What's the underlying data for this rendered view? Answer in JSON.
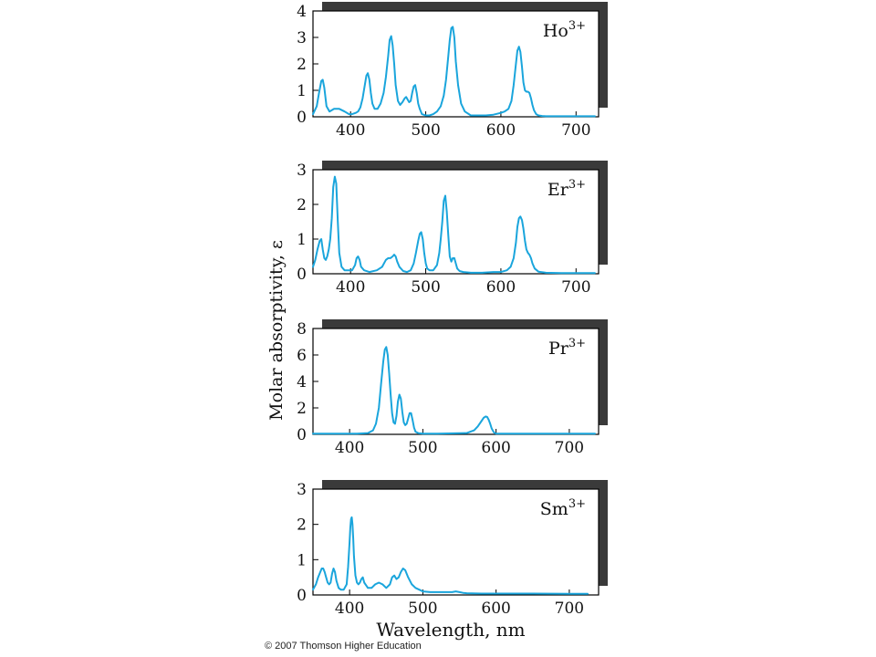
{
  "figure": {
    "ylabel": "Molar absorptivity, ε",
    "xlabel": "Wavelength, nm",
    "copyright": "© 2007 Thomson Higher Education",
    "colors": {
      "line": "#1aa5dc",
      "axis": "#000000",
      "shadow": "#3a3a3a"
    }
  },
  "chart_data": [
    {
      "type": "line",
      "ion_label": {
        "element": "Ho",
        "charge": "3+"
      },
      "xlim": [
        350,
        730
      ],
      "ylim": [
        0,
        4
      ],
      "y_ticks": [
        "0",
        "1",
        "2",
        "3",
        "4"
      ],
      "x_ticks": [
        "400",
        "500",
        "600",
        "700"
      ],
      "series": [
        {
          "x": [
            350,
            355,
            358,
            361,
            363,
            365,
            368,
            372,
            378,
            385,
            392,
            398,
            402,
            407,
            410,
            413,
            416,
            419,
            421,
            423,
            425,
            427,
            429,
            432,
            436,
            440,
            444,
            447,
            450,
            452,
            454,
            456,
            458,
            460,
            463,
            466,
            469,
            472,
            474,
            476,
            478,
            480,
            482,
            484,
            486,
            488,
            490,
            492,
            495,
            500,
            505,
            510,
            515,
            520,
            524,
            527,
            530,
            532,
            534,
            536,
            538,
            540,
            543,
            547,
            552,
            560,
            570,
            580,
            590,
            600,
            605,
            610,
            614,
            617,
            620,
            622,
            624,
            626,
            628,
            630,
            632,
            634,
            636,
            638,
            640,
            642,
            644,
            647,
            650,
            655,
            660,
            670,
            680,
            690,
            700,
            710,
            720,
            725
          ],
          "y": [
            0.1,
            0.4,
            0.9,
            1.35,
            1.4,
            1.1,
            0.4,
            0.2,
            0.3,
            0.3,
            0.2,
            0.1,
            0.1,
            0.15,
            0.2,
            0.35,
            0.7,
            1.2,
            1.55,
            1.65,
            1.4,
            0.9,
            0.5,
            0.3,
            0.3,
            0.5,
            0.9,
            1.5,
            2.3,
            2.9,
            3.05,
            2.7,
            2.0,
            1.2,
            0.6,
            0.45,
            0.55,
            0.7,
            0.75,
            0.65,
            0.55,
            0.6,
            0.9,
            1.15,
            1.2,
            0.9,
            0.5,
            0.3,
            0.1,
            0.05,
            0.05,
            0.1,
            0.2,
            0.4,
            0.8,
            1.4,
            2.3,
            2.9,
            3.35,
            3.4,
            3.0,
            2.1,
            1.2,
            0.5,
            0.2,
            0.05,
            0.05,
            0.05,
            0.08,
            0.15,
            0.2,
            0.3,
            0.6,
            1.2,
            2.0,
            2.5,
            2.65,
            2.45,
            1.9,
            1.3,
            1.0,
            0.95,
            0.95,
            0.9,
            0.7,
            0.45,
            0.25,
            0.1,
            0.05,
            0.03,
            0.02,
            0.02,
            0.02,
            0.02,
            0.02,
            0.02,
            0.02,
            0.02
          ]
        }
      ]
    },
    {
      "type": "line",
      "ion_label": {
        "element": "Er",
        "charge": "3+"
      },
      "xlim": [
        350,
        730
      ],
      "ylim": [
        0,
        3
      ],
      "y_ticks": [
        "0",
        "1",
        "2",
        "3"
      ],
      "x_ticks": [
        "400",
        "500",
        "600",
        "700"
      ],
      "series": [
        {
          "x": [
            350,
            353,
            356,
            359,
            361,
            363,
            365,
            367,
            369,
            371,
            373,
            375,
            377,
            379,
            381,
            383,
            385,
            388,
            392,
            397,
            402,
            406,
            408,
            410,
            412,
            414,
            418,
            425,
            435,
            442,
            447,
            450,
            453,
            456,
            458,
            460,
            462,
            465,
            470,
            475,
            480,
            484,
            487,
            490,
            492,
            494,
            496,
            498,
            500,
            502,
            505,
            510,
            515,
            518,
            520,
            522,
            524,
            526,
            528,
            530,
            532,
            534,
            536,
            538,
            540,
            542,
            545,
            550,
            560,
            575,
            590,
            600,
            608,
            613,
            617,
            620,
            622,
            624,
            626,
            628,
            630,
            632,
            634,
            636,
            638,
            640,
            642,
            645,
            650,
            660,
            680,
            700,
            715,
            725
          ],
          "y": [
            0.2,
            0.4,
            0.7,
            0.95,
            1.0,
            0.7,
            0.45,
            0.4,
            0.5,
            0.7,
            1.0,
            1.6,
            2.5,
            2.8,
            2.6,
            1.5,
            0.6,
            0.2,
            0.1,
            0.1,
            0.1,
            0.25,
            0.45,
            0.5,
            0.4,
            0.2,
            0.1,
            0.05,
            0.1,
            0.2,
            0.4,
            0.45,
            0.45,
            0.5,
            0.55,
            0.5,
            0.35,
            0.2,
            0.08,
            0.05,
            0.1,
            0.3,
            0.6,
            0.95,
            1.15,
            1.2,
            1.0,
            0.6,
            0.3,
            0.15,
            0.1,
            0.1,
            0.25,
            0.6,
            1.0,
            1.5,
            2.1,
            2.25,
            1.8,
            1.1,
            0.5,
            0.35,
            0.45,
            0.45,
            0.3,
            0.15,
            0.08,
            0.05,
            0.03,
            0.03,
            0.05,
            0.05,
            0.1,
            0.2,
            0.45,
            0.9,
            1.35,
            1.6,
            1.65,
            1.55,
            1.3,
            0.95,
            0.7,
            0.6,
            0.55,
            0.45,
            0.3,
            0.15,
            0.06,
            0.03,
            0.02,
            0.02,
            0.02,
            0.02
          ]
        }
      ]
    },
    {
      "type": "line",
      "ion_label": {
        "element": "Pr",
        "charge": "3+"
      },
      "xlim": [
        350,
        740
      ],
      "ylim": [
        0,
        8
      ],
      "y_ticks": [
        "0",
        "2",
        "4",
        "6",
        "8"
      ],
      "x_ticks": [
        "400",
        "500",
        "600",
        "700"
      ],
      "series": [
        {
          "x": [
            350,
            380,
            410,
            425,
            432,
            436,
            440,
            443,
            446,
            448,
            450,
            452,
            454,
            456,
            458,
            460,
            462,
            464,
            466,
            468,
            470,
            472,
            474,
            476,
            478,
            480,
            482,
            484,
            486,
            488,
            490,
            494,
            500,
            520,
            560,
            570,
            575,
            580,
            583,
            586,
            588,
            590,
            592,
            594,
            597,
            600,
            610,
            650,
            700,
            735
          ],
          "y": [
            0.05,
            0.05,
            0.05,
            0.1,
            0.3,
            0.8,
            2.0,
            3.8,
            5.5,
            6.4,
            6.6,
            6.0,
            4.6,
            3.0,
            1.6,
            0.9,
            0.8,
            1.4,
            2.5,
            3.0,
            2.7,
            1.7,
            0.9,
            0.7,
            0.8,
            1.2,
            1.6,
            1.6,
            1.1,
            0.5,
            0.2,
            0.08,
            0.05,
            0.05,
            0.1,
            0.3,
            0.6,
            1.0,
            1.25,
            1.35,
            1.3,
            1.1,
            0.8,
            0.45,
            0.15,
            0.05,
            0.05,
            0.05,
            0.05,
            0.05
          ]
        }
      ]
    },
    {
      "type": "line",
      "ion_label": {
        "element": "Sm",
        "charge": "3+"
      },
      "xlim": [
        350,
        740
      ],
      "ylim": [
        0,
        3
      ],
      "y_ticks": [
        "0",
        "1",
        "2",
        "3"
      ],
      "x_ticks": [
        "400",
        "500",
        "600",
        "700"
      ],
      "series": [
        {
          "x": [
            350,
            354,
            357,
            360,
            362,
            364,
            366,
            368,
            370,
            372,
            374,
            376,
            378,
            380,
            382,
            385,
            388,
            392,
            396,
            398,
            400,
            401,
            402,
            403,
            404,
            405,
            406,
            408,
            410,
            412,
            414,
            416,
            418,
            420,
            425,
            430,
            435,
            440,
            445,
            450,
            455,
            458,
            461,
            464,
            467,
            470,
            473,
            476,
            480,
            485,
            490,
            495,
            500,
            510,
            520,
            530,
            540,
            545,
            550,
            555,
            560,
            580,
            600,
            650,
            700,
            725
          ],
          "y": [
            0.15,
            0.3,
            0.5,
            0.65,
            0.75,
            0.75,
            0.65,
            0.5,
            0.35,
            0.3,
            0.35,
            0.6,
            0.75,
            0.65,
            0.4,
            0.2,
            0.15,
            0.15,
            0.3,
            0.8,
            1.5,
            1.9,
            2.15,
            2.2,
            2.0,
            1.6,
            1.1,
            0.55,
            0.35,
            0.3,
            0.35,
            0.45,
            0.5,
            0.35,
            0.2,
            0.2,
            0.3,
            0.35,
            0.3,
            0.2,
            0.3,
            0.5,
            0.55,
            0.45,
            0.5,
            0.65,
            0.75,
            0.7,
            0.5,
            0.3,
            0.2,
            0.15,
            0.1,
            0.08,
            0.08,
            0.08,
            0.08,
            0.1,
            0.08,
            0.06,
            0.05,
            0.04,
            0.04,
            0.04,
            0.03,
            0.03
          ]
        }
      ]
    }
  ]
}
